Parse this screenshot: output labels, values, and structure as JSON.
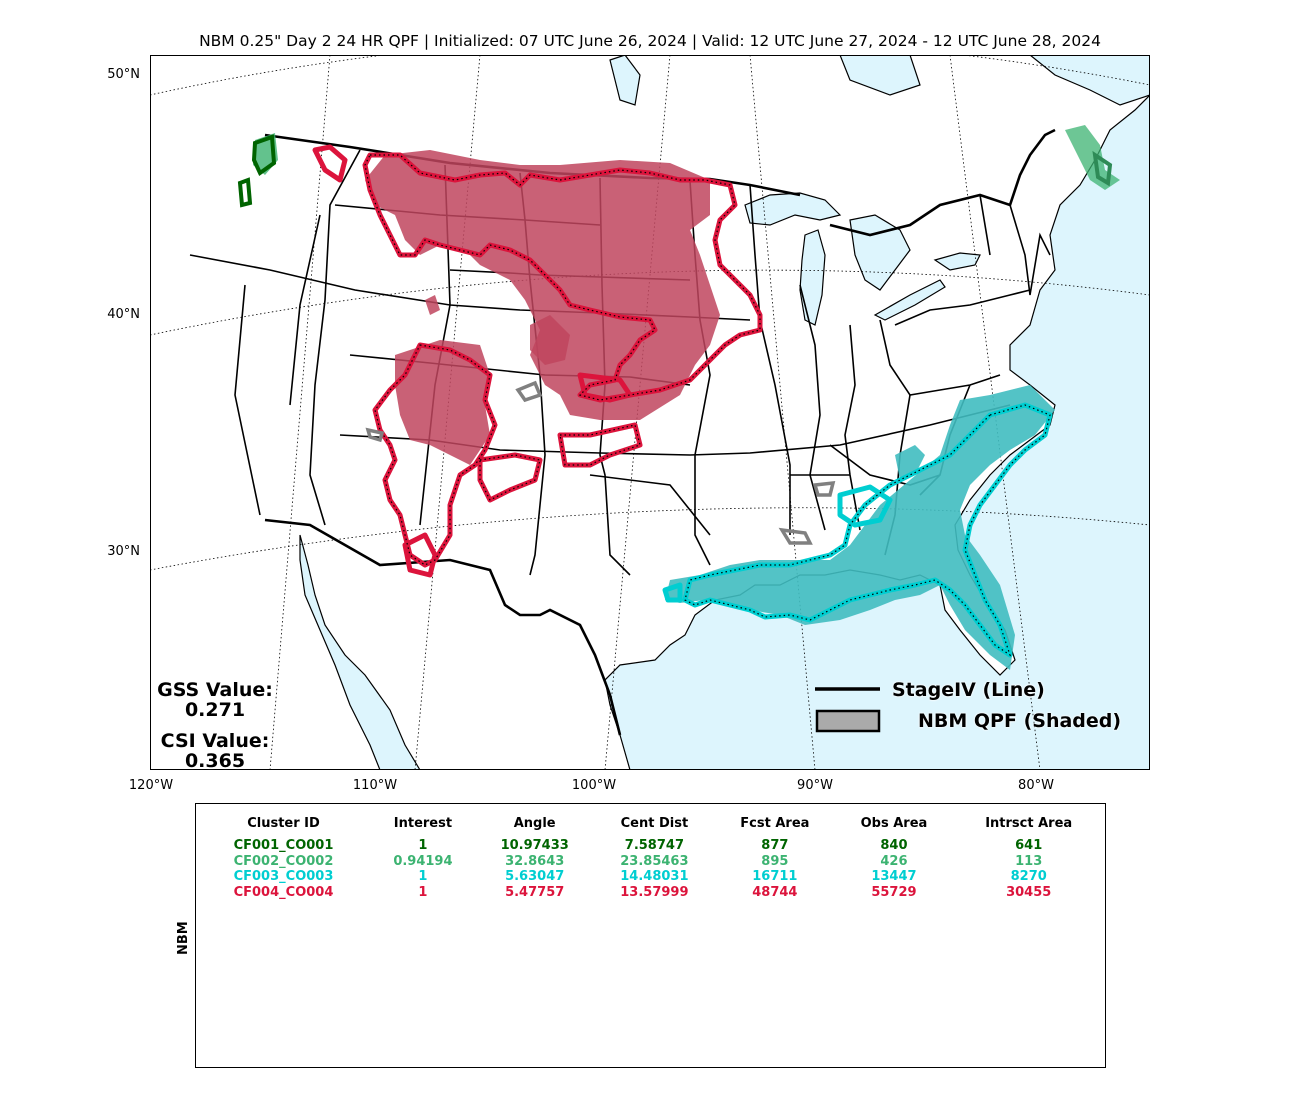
{
  "title": "NBM 0.25\" Day 2 24 HR QPF | Initialized: 07 UTC June 26, 2024 | Valid: 12 UTC June 27, 2024 - 12 UTC June 28, 2024",
  "lat_labels": [
    "50°N",
    "40°N",
    "30°N"
  ],
  "lon_labels": [
    "120°W",
    "110°W",
    "100°W",
    "90°W",
    "80°W"
  ],
  "gss": {
    "label": "GSS Value:",
    "value": "0.271"
  },
  "csi": {
    "label": "CSI Value:",
    "value": "0.365"
  },
  "legend": {
    "line": "StageIV (Line)",
    "shaded": "NBM QPF (Shaded)"
  },
  "table": {
    "side_label": "NBM",
    "headers": [
      "Cluster ID",
      "Interest",
      "Angle",
      "Cent Dist",
      "Fcst Area",
      "Obs Area",
      "Intrsct Area"
    ],
    "rows": [
      {
        "color": "#006400",
        "cells": [
          "CF001_CO001",
          "1",
          "10.97433",
          "7.58747",
          "877",
          "840",
          "641"
        ]
      },
      {
        "color": "#3cb371",
        "cells": [
          "CF002_CO002",
          "0.94194",
          "32.8643",
          "23.85463",
          "895",
          "426",
          "113"
        ]
      },
      {
        "color": "#00ced1",
        "cells": [
          "CF003_CO003",
          "1",
          "5.63047",
          "14.48031",
          "16711",
          "13447",
          "8270"
        ]
      },
      {
        "color": "#dc143c",
        "cells": [
          "CF004_CO004",
          "1",
          "5.47757",
          "13.57999",
          "48744",
          "55729",
          "30455"
        ]
      }
    ]
  },
  "colors": {
    "ocean": "#ddf5fd",
    "land": "#ffffff",
    "cluster1": "#006400",
    "cluster2": "#3cb371",
    "cluster3": "#00ced1",
    "cluster4": "#dc143c",
    "unmatched": "#808080"
  }
}
